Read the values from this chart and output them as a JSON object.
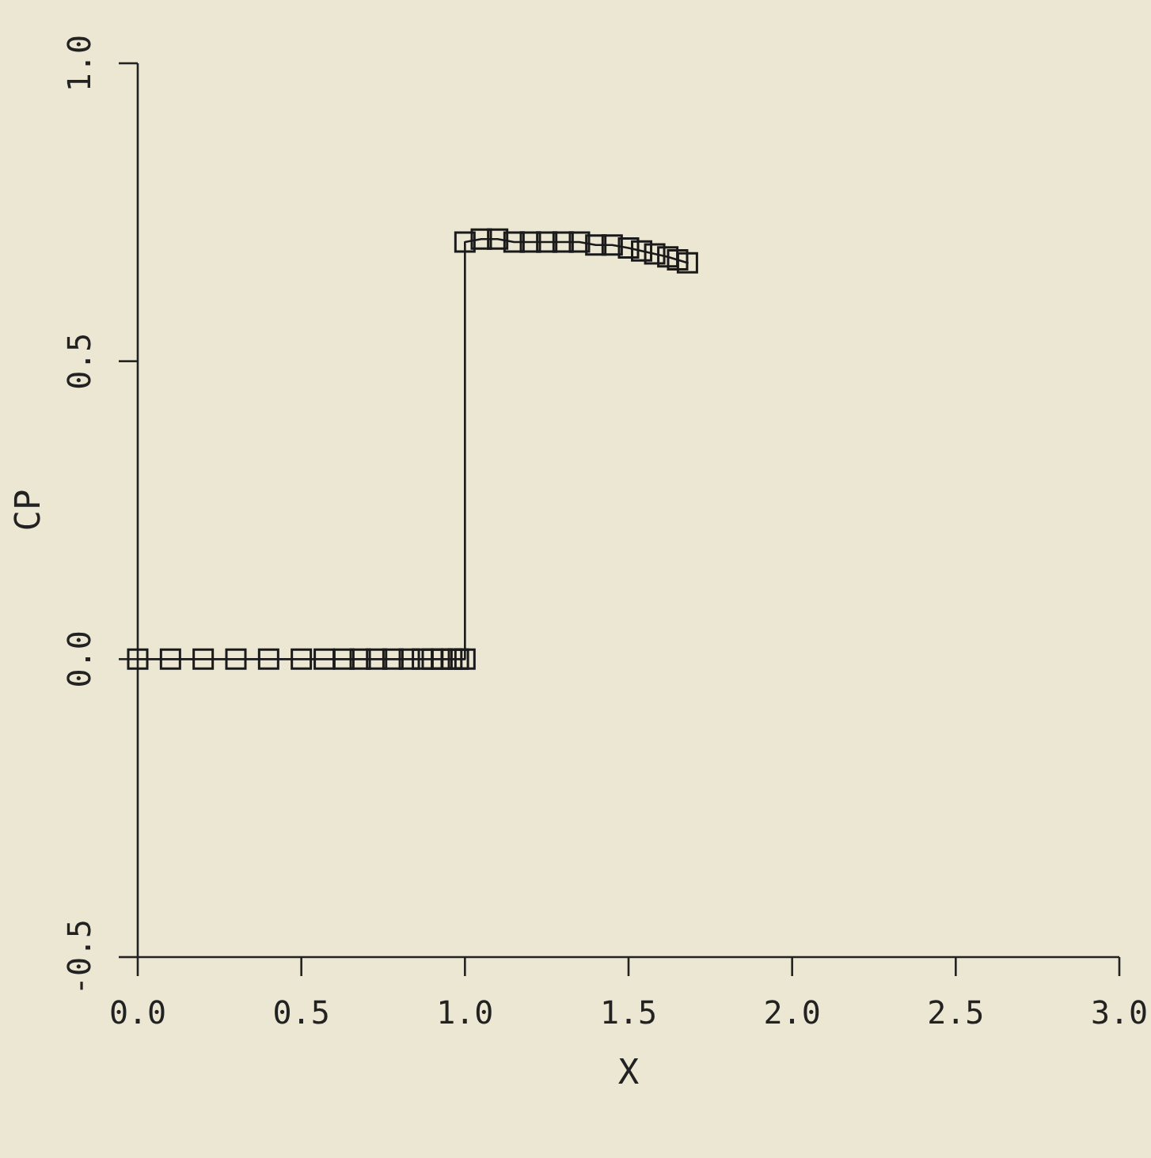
{
  "chart_data": {
    "type": "line",
    "xlabel": "X",
    "ylabel": "CP",
    "xlim": [
      0,
      3
    ],
    "xticks": [
      {
        "value": 0,
        "label": "0.0"
      },
      0.5,
      {
        "value": 1,
        "label": "1.0"
      },
      1.5,
      {
        "value": 2,
        "label": "2.0"
      },
      2.5,
      {
        "value": 3,
        "label": "3.0"
      }
    ],
    "ylim": [
      -0.5,
      1
    ],
    "yticks": [
      -0.5,
      {
        "value": 0,
        "label": "0.0"
      },
      0.5,
      {
        "value": 1,
        "label": "1.0"
      }
    ],
    "grid": false,
    "marker": "square",
    "line_style": "solid",
    "series": [
      {
        "color": "#1a1a1a",
        "x": [
          0,
          0.1,
          0.2,
          0.3,
          0.4,
          0.5,
          0.57,
          0.63,
          0.68,
          0.73,
          0.78,
          0.83,
          0.87,
          0.9,
          0.93,
          0.96,
          0.98,
          1.0,
          1.0,
          1.05,
          1.1,
          1.15,
          1.2,
          1.25,
          1.3,
          1.35,
          1.4,
          1.45,
          1.5,
          1.54,
          1.58,
          1.62,
          1.65,
          1.68
        ],
        "values": [
          0,
          0,
          0,
          0,
          0,
          0,
          0,
          0,
          0,
          0,
          0,
          0,
          0,
          0,
          0,
          0,
          0,
          0,
          0.7,
          0.705,
          0.705,
          0.7,
          0.7,
          0.7,
          0.7,
          0.7,
          0.695,
          0.695,
          0.69,
          0.685,
          0.68,
          0.675,
          0.67,
          0.665
        ]
      }
    ]
  }
}
